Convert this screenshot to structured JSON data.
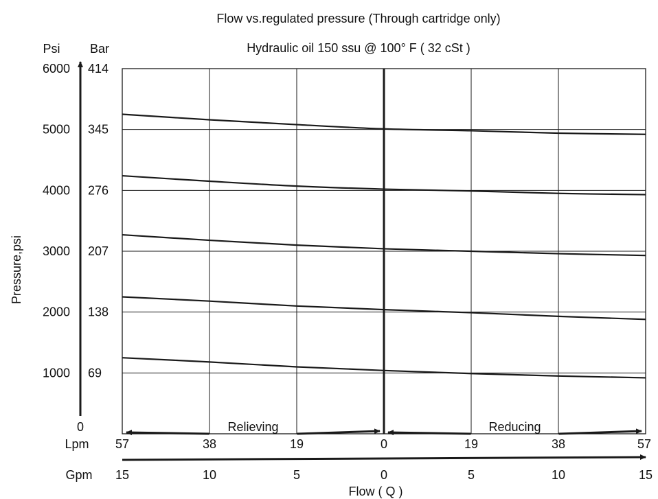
{
  "colors": {
    "line": "#1a1a1a",
    "background": "#ffffff"
  },
  "chart_data": {
    "type": "line",
    "title": "Flow vs.regulated pressure (Through cartridge only)",
    "subtitle": "Hydraulic oil 150 ssu @ 100° F ( 32 cSt )",
    "ylabel": "Pressure,psi",
    "xlabel": "Flow ( Q )",
    "y_axis": {
      "psi_header": "Psi",
      "bar_header": "Bar",
      "ylim": [
        0,
        6000
      ],
      "psi_ticks": [
        {
          "value": 0,
          "label": "0"
        },
        {
          "value": 1000,
          "label": "1000"
        },
        {
          "value": 2000,
          "label": "2000"
        },
        {
          "value": 3000,
          "label": "3000"
        },
        {
          "value": 4000,
          "label": "4000"
        },
        {
          "value": 5000,
          "label": "5000"
        },
        {
          "value": 6000,
          "label": "6000"
        }
      ],
      "bar_ticks": [
        {
          "value": 1000,
          "label": "69"
        },
        {
          "value": 2000,
          "label": "138"
        },
        {
          "value": 3000,
          "label": "207"
        },
        {
          "value": 4000,
          "label": "276"
        },
        {
          "value": 5000,
          "label": "345"
        },
        {
          "value": 6000,
          "label": "414"
        }
      ]
    },
    "x_axis": {
      "xlim": [
        -15,
        15
      ],
      "gpm_header": "Gpm",
      "lpm_header": "Lpm",
      "gridlines": [
        -10,
        -5,
        0,
        5,
        10
      ],
      "gpm_ticks": [
        {
          "value": -15,
          "label": "15"
        },
        {
          "value": -10,
          "label": "10"
        },
        {
          "value": -5,
          "label": "5"
        },
        {
          "value": 0,
          "label": "0"
        },
        {
          "value": 5,
          "label": "5"
        },
        {
          "value": 10,
          "label": "10"
        },
        {
          "value": 15,
          "label": "15"
        }
      ],
      "lpm_ticks": [
        {
          "value": -15,
          "label": "57"
        },
        {
          "value": -10,
          "label": "38"
        },
        {
          "value": -5,
          "label": "19"
        },
        {
          "value": 0,
          "label": "0"
        },
        {
          "value": 5,
          "label": "19"
        },
        {
          "value": 10,
          "label": "38"
        },
        {
          "value": 15,
          "label": "57"
        }
      ]
    },
    "regions": [
      {
        "label": "Relieving",
        "from": -15,
        "to": 0
      },
      {
        "label": "Reducing",
        "from": 0,
        "to": 15
      }
    ],
    "grid": true,
    "series": [
      {
        "x": [
          -15,
          -10,
          -5,
          0,
          5,
          10,
          15
        ],
        "values": [
          1250,
          1180,
          1100,
          1040,
          990,
          950,
          920
        ]
      },
      {
        "x": [
          -15,
          -10,
          -5,
          0,
          5,
          10,
          15
        ],
        "values": [
          2250,
          2180,
          2100,
          2040,
          1990,
          1930,
          1880
        ]
      },
      {
        "x": [
          -15,
          -10,
          -5,
          0,
          5,
          10,
          15
        ],
        "values": [
          3270,
          3180,
          3100,
          3040,
          3000,
          2960,
          2930
        ]
      },
      {
        "x": [
          -15,
          -10,
          -5,
          0,
          5,
          10,
          15
        ],
        "values": [
          4240,
          4150,
          4070,
          4020,
          3990,
          3950,
          3930
        ]
      },
      {
        "x": [
          -15,
          -10,
          -5,
          0,
          5,
          10,
          15
        ],
        "values": [
          5250,
          5160,
          5080,
          5010,
          4980,
          4940,
          4920
        ]
      }
    ]
  }
}
